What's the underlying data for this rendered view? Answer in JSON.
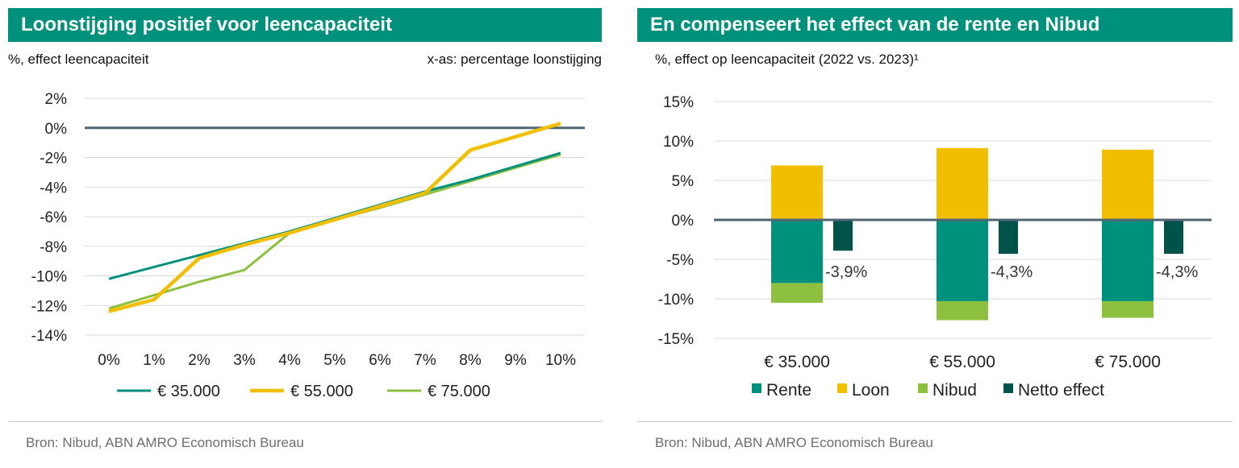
{
  "left": {
    "title": "Loonstijging positief voor leencapaciteit",
    "subtitle_left": "%, effect leencapaciteit",
    "subtitle_right": "x-as: percentage loonstijging",
    "source": "Bron: Nibud, ABN AMRO Economisch Bureau"
  },
  "right": {
    "title": "En compenseert het effect van de rente en Nibud",
    "subtitle": "%, effect op leencapaciteit (2022 vs. 2023)¹",
    "source": "Bron: Nibud, ABN AMRO Economisch Bureau"
  },
  "chart_data": [
    {
      "type": "line",
      "x": [
        0,
        1,
        2,
        3,
        4,
        5,
        6,
        7,
        8,
        9,
        10
      ],
      "xticks": [
        "0%",
        "1%",
        "2%",
        "3%",
        "4%",
        "5%",
        "6%",
        "7%",
        "8%",
        "9%",
        "10%"
      ],
      "yticks": [
        "2%",
        "0%",
        "-2%",
        "-4%",
        "-6%",
        "-8%",
        "-10%",
        "-12%",
        "-14%"
      ],
      "ylim": [
        -14,
        2
      ],
      "grid": true,
      "legend_position": "bottom",
      "series": [
        {
          "name": "€ 35.000",
          "color": "#00917c",
          "values": [
            -10.2,
            -9.4,
            -8.6,
            -7.8,
            -7.0,
            -6.1,
            -5.2,
            -4.3,
            -3.5,
            -2.6,
            -1.7
          ]
        },
        {
          "name": "€ 55.000",
          "color": "#f2bf00",
          "values": [
            -12.4,
            -11.6,
            -8.8,
            -7.9,
            -7.1,
            -6.2,
            -5.3,
            -4.4,
            -1.5,
            -0.6,
            0.3
          ]
        },
        {
          "name": "€ 75.000",
          "color": "#8dc03f",
          "values": [
            -12.2,
            -11.3,
            -10.4,
            -9.6,
            -7.1,
            -6.2,
            -5.4,
            -4.5,
            -3.6,
            -2.7,
            -1.8
          ]
        }
      ]
    },
    {
      "type": "bar",
      "stacked": true,
      "categories": [
        "€ 35.000",
        "€ 55.000",
        "€ 75.000"
      ],
      "yticks": [
        "15%",
        "10%",
        "5%",
        "0%",
        "-5%",
        "-10%",
        "-15%"
      ],
      "ylim": [
        -15,
        15
      ],
      "grid": true,
      "legend_position": "bottom",
      "series": [
        {
          "name": "Rente",
          "color": "#00917c",
          "values": [
            -8.0,
            -10.3,
            -10.3
          ]
        },
        {
          "name": "Loon",
          "color": "#f2bf00",
          "values": [
            6.9,
            9.1,
            8.9
          ]
        },
        {
          "name": "Nibud",
          "color": "#8dc03f",
          "values": [
            -2.5,
            -2.4,
            -2.1
          ]
        },
        {
          "name": "Netto effect",
          "color": "#00534a",
          "values": [
            -3.9,
            -4.3,
            -4.3
          ]
        }
      ],
      "data_labels": [
        "-3,9%",
        "-4,3%",
        "-4,3%"
      ]
    }
  ]
}
